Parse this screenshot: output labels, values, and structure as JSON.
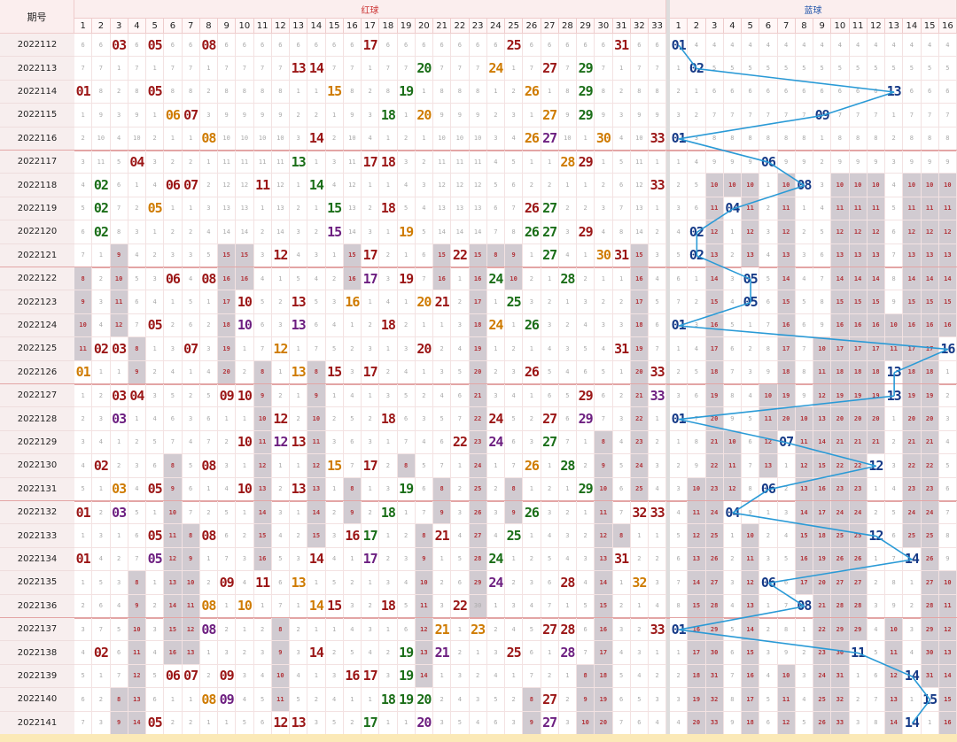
{
  "header": {
    "period_label": "期号",
    "red_label": "红球",
    "blue_label": "蓝球"
  },
  "red_numbers": [
    "1",
    "2",
    "3",
    "4",
    "5",
    "6",
    "7",
    "8",
    "9",
    "10",
    "11",
    "12",
    "13",
    "14",
    "15",
    "16",
    "17",
    "18",
    "19",
    "20",
    "21",
    "22",
    "23",
    "24",
    "25",
    "26",
    "27",
    "28",
    "29",
    "30",
    "31",
    "32",
    "33"
  ],
  "blue_numbers": [
    "1",
    "2",
    "3",
    "4",
    "5",
    "6",
    "7",
    "8",
    "9",
    "10",
    "11",
    "12",
    "13",
    "14",
    "15",
    "16"
  ],
  "colors": {
    "red": "#9b1616",
    "green": "#1b6e18",
    "orange": "#cf7b00",
    "purple": "#6d1f80",
    "blue": "#163a87",
    "trend_line": "#2a9ad6",
    "miss_shade": "#d1cbd1"
  },
  "rows": [
    {
      "period": "2022112",
      "red": [
        {
          "n": 3,
          "c": "red"
        },
        {
          "n": 5,
          "c": "red"
        },
        {
          "n": 8,
          "c": "red"
        },
        {
          "n": 17,
          "c": "red"
        },
        {
          "n": 25,
          "c": "red"
        },
        {
          "n": 31,
          "c": "red"
        }
      ],
      "blue": 1
    },
    {
      "period": "2022113",
      "red": [
        {
          "n": 13,
          "c": "red"
        },
        {
          "n": 14,
          "c": "red"
        },
        {
          "n": 20,
          "c": "green"
        },
        {
          "n": 24,
          "c": "orange"
        },
        {
          "n": 27,
          "c": "red"
        },
        {
          "n": 29,
          "c": "green"
        }
      ],
      "blue": 2
    },
    {
      "period": "2022114",
      "red": [
        {
          "n": 1,
          "c": "red"
        },
        {
          "n": 5,
          "c": "red"
        },
        {
          "n": 15,
          "c": "orange"
        },
        {
          "n": 19,
          "c": "green"
        },
        {
          "n": 26,
          "c": "orange"
        },
        {
          "n": 29,
          "c": "green"
        }
      ],
      "blue": 13
    },
    {
      "period": "2022115",
      "red": [
        {
          "n": 6,
          "c": "orange"
        },
        {
          "n": 7,
          "c": "red"
        },
        {
          "n": 18,
          "c": "green"
        },
        {
          "n": 20,
          "c": "orange"
        },
        {
          "n": 27,
          "c": "orange"
        },
        {
          "n": 29,
          "c": "green"
        }
      ],
      "blue": 9
    },
    {
      "period": "2022116",
      "red": [
        {
          "n": 8,
          "c": "orange"
        },
        {
          "n": 14,
          "c": "red"
        },
        {
          "n": 26,
          "c": "orange"
        },
        {
          "n": 27,
          "c": "purple"
        },
        {
          "n": 30,
          "c": "orange"
        },
        {
          "n": 33,
          "c": "red"
        }
      ],
      "blue": 1
    },
    {
      "period": "2022117",
      "red": [
        {
          "n": 4,
          "c": "red"
        },
        {
          "n": 13,
          "c": "green"
        },
        {
          "n": 17,
          "c": "red"
        },
        {
          "n": 18,
          "c": "red"
        },
        {
          "n": 28,
          "c": "orange"
        },
        {
          "n": 29,
          "c": "red"
        }
      ],
      "blue": 6
    },
    {
      "period": "2022118",
      "red": [
        {
          "n": 2,
          "c": "green"
        },
        {
          "n": 6,
          "c": "red"
        },
        {
          "n": 7,
          "c": "red"
        },
        {
          "n": 11,
          "c": "red"
        },
        {
          "n": 14,
          "c": "green"
        },
        {
          "n": 33,
          "c": "red"
        }
      ],
      "blue": 8
    },
    {
      "period": "2022119",
      "red": [
        {
          "n": 2,
          "c": "green"
        },
        {
          "n": 5,
          "c": "orange"
        },
        {
          "n": 15,
          "c": "green"
        },
        {
          "n": 18,
          "c": "red"
        },
        {
          "n": 26,
          "c": "red"
        },
        {
          "n": 27,
          "c": "green"
        }
      ],
      "blue": 4
    },
    {
      "period": "2022120",
      "red": [
        {
          "n": 2,
          "c": "green"
        },
        {
          "n": 15,
          "c": "purple"
        },
        {
          "n": 19,
          "c": "orange"
        },
        {
          "n": 26,
          "c": "green"
        },
        {
          "n": 27,
          "c": "green"
        },
        {
          "n": 29,
          "c": "red"
        }
      ],
      "blue": 2
    },
    {
      "period": "2022121",
      "red": [
        {
          "n": 12,
          "c": "red"
        },
        {
          "n": 17,
          "c": "red"
        },
        {
          "n": 22,
          "c": "red"
        },
        {
          "n": 27,
          "c": "green"
        },
        {
          "n": 30,
          "c": "orange"
        },
        {
          "n": 31,
          "c": "red"
        }
      ],
      "blue": 2
    },
    {
      "period": "2022122",
      "red": [
        {
          "n": 6,
          "c": "red"
        },
        {
          "n": 8,
          "c": "red"
        },
        {
          "n": 17,
          "c": "purple"
        },
        {
          "n": 19,
          "c": "red"
        },
        {
          "n": 24,
          "c": "green"
        },
        {
          "n": 28,
          "c": "green"
        }
      ],
      "blue": 5
    },
    {
      "period": "2022123",
      "red": [
        {
          "n": 10,
          "c": "red"
        },
        {
          "n": 13,
          "c": "red"
        },
        {
          "n": 16,
          "c": "orange"
        },
        {
          "n": 20,
          "c": "orange"
        },
        {
          "n": 21,
          "c": "red"
        },
        {
          "n": 25,
          "c": "green"
        }
      ],
      "blue": 5
    },
    {
      "period": "2022124",
      "red": [
        {
          "n": 5,
          "c": "red"
        },
        {
          "n": 10,
          "c": "purple"
        },
        {
          "n": 13,
          "c": "purple"
        },
        {
          "n": 18,
          "c": "red"
        },
        {
          "n": 24,
          "c": "orange"
        },
        {
          "n": 26,
          "c": "green"
        }
      ],
      "blue": 1
    },
    {
      "period": "2022125",
      "red": [
        {
          "n": 2,
          "c": "red"
        },
        {
          "n": 3,
          "c": "red"
        },
        {
          "n": 7,
          "c": "red"
        },
        {
          "n": 12,
          "c": "orange"
        },
        {
          "n": 20,
          "c": "red"
        },
        {
          "n": 31,
          "c": "red"
        }
      ],
      "blue": 16
    },
    {
      "period": "2022126",
      "red": [
        {
          "n": 1,
          "c": "orange"
        },
        {
          "n": 13,
          "c": "orange"
        },
        {
          "n": 15,
          "c": "red"
        },
        {
          "n": 17,
          "c": "red"
        },
        {
          "n": 26,
          "c": "red"
        },
        {
          "n": 33,
          "c": "red"
        }
      ],
      "blue": 13
    },
    {
      "period": "2022127",
      "red": [
        {
          "n": 3,
          "c": "red"
        },
        {
          "n": 4,
          "c": "red"
        },
        {
          "n": 9,
          "c": "red"
        },
        {
          "n": 10,
          "c": "red"
        },
        {
          "n": 29,
          "c": "red"
        },
        {
          "n": 33,
          "c": "purple"
        }
      ],
      "blue": 13
    },
    {
      "period": "2022128",
      "red": [
        {
          "n": 3,
          "c": "purple"
        },
        {
          "n": 12,
          "c": "red"
        },
        {
          "n": 18,
          "c": "red"
        },
        {
          "n": 24,
          "c": "red"
        },
        {
          "n": 27,
          "c": "red"
        },
        {
          "n": 29,
          "c": "purple"
        }
      ],
      "blue": 1
    },
    {
      "period": "2022129",
      "red": [
        {
          "n": 10,
          "c": "red"
        },
        {
          "n": 12,
          "c": "purple"
        },
        {
          "n": 13,
          "c": "red"
        },
        {
          "n": 22,
          "c": "red"
        },
        {
          "n": 24,
          "c": "purple"
        },
        {
          "n": 27,
          "c": "green"
        }
      ],
      "blue": 7
    },
    {
      "period": "2022130",
      "red": [
        {
          "n": 2,
          "c": "red"
        },
        {
          "n": 8,
          "c": "red"
        },
        {
          "n": 15,
          "c": "orange"
        },
        {
          "n": 17,
          "c": "red"
        },
        {
          "n": 26,
          "c": "orange"
        },
        {
          "n": 28,
          "c": "green"
        }
      ],
      "blue": 12
    },
    {
      "period": "2022131",
      "red": [
        {
          "n": 3,
          "c": "orange"
        },
        {
          "n": 5,
          "c": "red"
        },
        {
          "n": 10,
          "c": "red"
        },
        {
          "n": 13,
          "c": "red"
        },
        {
          "n": 19,
          "c": "green"
        },
        {
          "n": 29,
          "c": "green"
        }
      ],
      "blue": 6
    },
    {
      "period": "2022132",
      "red": [
        {
          "n": 1,
          "c": "red"
        },
        {
          "n": 3,
          "c": "purple"
        },
        {
          "n": 18,
          "c": "green"
        },
        {
          "n": 26,
          "c": "green"
        },
        {
          "n": 32,
          "c": "red"
        },
        {
          "n": 33,
          "c": "red"
        }
      ],
      "blue": 4
    },
    {
      "period": "2022133",
      "red": [
        {
          "n": 5,
          "c": "red"
        },
        {
          "n": 8,
          "c": "red"
        },
        {
          "n": 16,
          "c": "red"
        },
        {
          "n": 17,
          "c": "green"
        },
        {
          "n": 21,
          "c": "red"
        },
        {
          "n": 25,
          "c": "green"
        }
      ],
      "blue": 12
    },
    {
      "period": "2022134",
      "red": [
        {
          "n": 1,
          "c": "red"
        },
        {
          "n": 5,
          "c": "purple"
        },
        {
          "n": 14,
          "c": "red"
        },
        {
          "n": 17,
          "c": "purple"
        },
        {
          "n": 24,
          "c": "green"
        },
        {
          "n": 31,
          "c": "red"
        }
      ],
      "blue": 14
    },
    {
      "period": "2022135",
      "red": [
        {
          "n": 9,
          "c": "red"
        },
        {
          "n": 11,
          "c": "red"
        },
        {
          "n": 13,
          "c": "orange"
        },
        {
          "n": 24,
          "c": "purple"
        },
        {
          "n": 28,
          "c": "red"
        },
        {
          "n": 32,
          "c": "orange"
        }
      ],
      "blue": 6
    },
    {
      "period": "2022136",
      "red": [
        {
          "n": 8,
          "c": "orange"
        },
        {
          "n": 10,
          "c": "orange"
        },
        {
          "n": 14,
          "c": "orange"
        },
        {
          "n": 15,
          "c": "red"
        },
        {
          "n": 18,
          "c": "red"
        },
        {
          "n": 22,
          "c": "red"
        }
      ],
      "blue": 8
    },
    {
      "period": "2022137",
      "red": [
        {
          "n": 8,
          "c": "purple"
        },
        {
          "n": 21,
          "c": "orange"
        },
        {
          "n": 23,
          "c": "orange"
        },
        {
          "n": 27,
          "c": "red"
        },
        {
          "n": 28,
          "c": "red"
        },
        {
          "n": 33,
          "c": "red"
        }
      ],
      "blue": 1
    },
    {
      "period": "2022138",
      "red": [
        {
          "n": 2,
          "c": "red"
        },
        {
          "n": 14,
          "c": "red"
        },
        {
          "n": 19,
          "c": "green"
        },
        {
          "n": 21,
          "c": "purple"
        },
        {
          "n": 25,
          "c": "red"
        },
        {
          "n": 28,
          "c": "purple"
        }
      ],
      "blue": 11
    },
    {
      "period": "2022139",
      "red": [
        {
          "n": 6,
          "c": "red"
        },
        {
          "n": 7,
          "c": "red"
        },
        {
          "n": 9,
          "c": "red"
        },
        {
          "n": 16,
          "c": "red"
        },
        {
          "n": 17,
          "c": "red"
        },
        {
          "n": 19,
          "c": "green"
        }
      ],
      "blue": 14
    },
    {
      "period": "2022140",
      "red": [
        {
          "n": 8,
          "c": "orange"
        },
        {
          "n": 9,
          "c": "purple"
        },
        {
          "n": 18,
          "c": "green"
        },
        {
          "n": 19,
          "c": "green"
        },
        {
          "n": 20,
          "c": "green"
        },
        {
          "n": 27,
          "c": "red"
        }
      ],
      "blue": 15
    },
    {
      "period": "2022141",
      "red": [
        {
          "n": 5,
          "c": "red"
        },
        {
          "n": 12,
          "c": "red"
        },
        {
          "n": 13,
          "c": "red"
        },
        {
          "n": 17,
          "c": "green"
        },
        {
          "n": 20,
          "c": "purple"
        },
        {
          "n": 27,
          "c": "purple"
        }
      ],
      "blue": 14
    }
  ]
}
